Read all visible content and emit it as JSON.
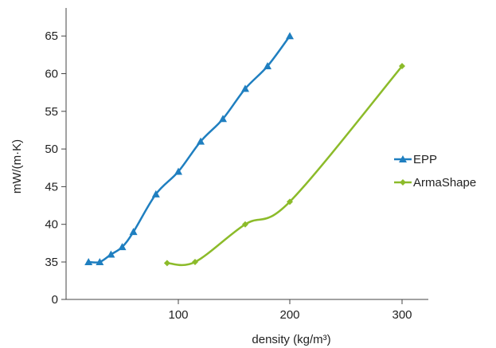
{
  "chart_data": {
    "type": "line",
    "title": "",
    "xlabel": "density (kg/m³)",
    "ylabel": "mW/(m·K)",
    "xlim": [
      0,
      325
    ],
    "ylim": [
      0,
      68
    ],
    "x_ticks": [
      100,
      200,
      300
    ],
    "y_ticks": [
      0,
      35,
      40,
      45,
      50,
      55,
      60,
      65
    ],
    "legend_position": "right",
    "grid": false,
    "series": [
      {
        "name": "EPP",
        "color": "#1f7fc0",
        "marker": "triangle",
        "points": [
          [
            20,
            35
          ],
          [
            30,
            35
          ],
          [
            40,
            36
          ],
          [
            50,
            37
          ],
          [
            60,
            39
          ],
          [
            80,
            44
          ],
          [
            100,
            47
          ],
          [
            120,
            51
          ],
          [
            140,
            54
          ],
          [
            160,
            58
          ],
          [
            180,
            61
          ],
          [
            200,
            65
          ]
        ]
      },
      {
        "name": "ArmaShape",
        "color": "#8cbb2a",
        "marker": "diamond",
        "points": [
          [
            90,
            34
          ],
          [
            115,
            35
          ],
          [
            160,
            40
          ],
          [
            200,
            43
          ],
          [
            300,
            61
          ]
        ]
      }
    ]
  }
}
